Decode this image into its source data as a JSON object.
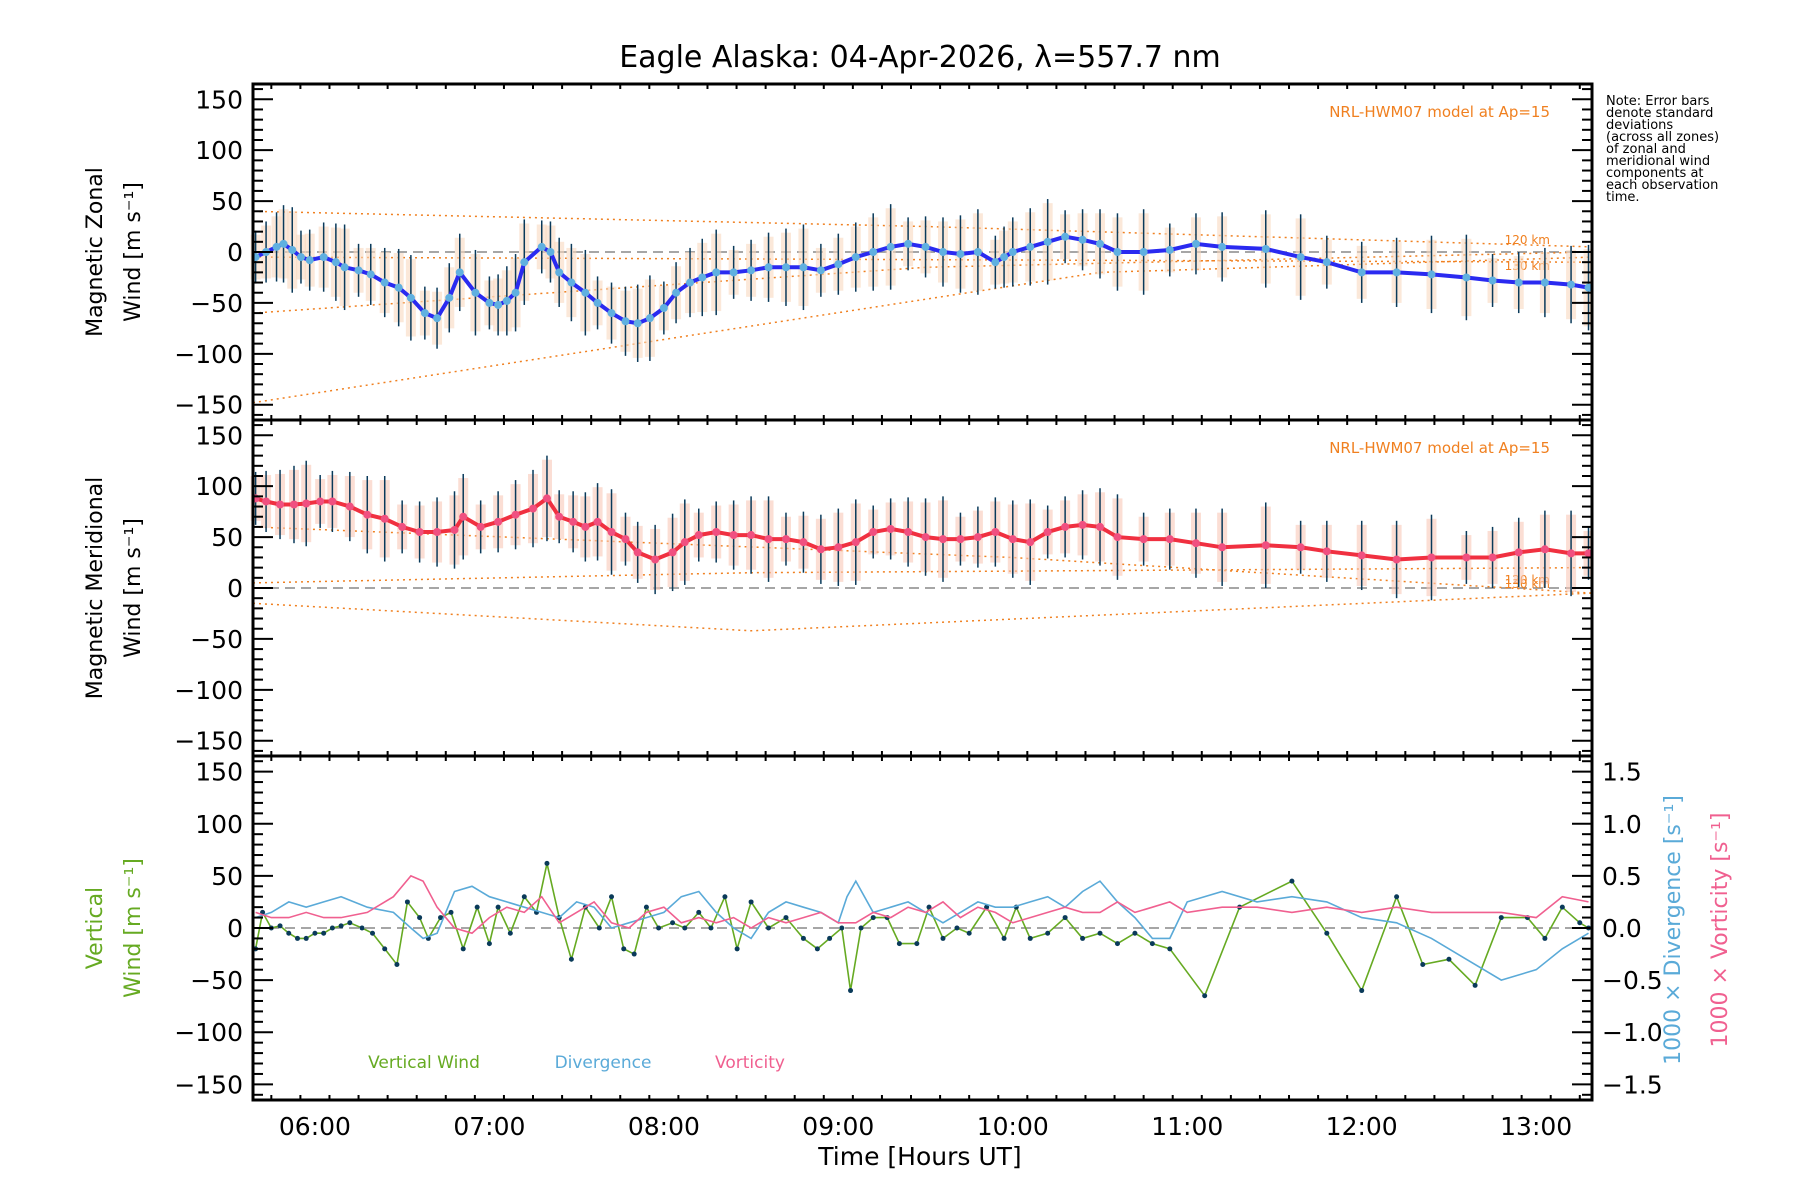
{
  "chart_data": [
    {
      "type": "line",
      "panel": "zonal",
      "title": "Eagle Alaska: 04-Apr-2026, λ=557.7 nm",
      "ylabel_line1": "Magnetic Zonal",
      "ylabel_line2": "Wind [m s⁻¹]",
      "ylim": [
        -165,
        165
      ],
      "yticks": [
        -150,
        -100,
        -50,
        0,
        50,
        100,
        150
      ],
      "model_label": "NRL-HWM07 model at Ap=15",
      "model_levels": [
        "120 km",
        "130 km"
      ],
      "series": [
        {
          "name": "Zonal Wind",
          "color": "#2a2af0",
          "x": [
            5.66,
            5.72,
            5.78,
            5.82,
            5.87,
            5.92,
            5.97,
            6.05,
            6.12,
            6.17,
            6.25,
            6.32,
            6.4,
            6.48,
            6.55,
            6.63,
            6.7,
            6.77,
            6.83,
            6.92,
            7.0,
            7.05,
            7.1,
            7.15,
            7.2,
            7.3,
            7.35,
            7.4,
            7.47,
            7.55,
            7.62,
            7.7,
            7.78,
            7.85,
            7.92,
            8.0,
            8.07,
            8.15,
            8.22,
            8.3,
            8.4,
            8.5,
            8.6,
            8.7,
            8.8,
            8.9,
            9.0,
            9.1,
            9.2,
            9.3,
            9.4,
            9.5,
            9.6,
            9.7,
            9.8,
            9.9,
            9.95,
            10.0,
            10.1,
            10.2,
            10.3,
            10.4,
            10.5,
            10.6,
            10.75,
            10.9,
            11.05,
            11.2,
            11.45,
            11.65,
            11.8,
            12.0,
            12.2,
            12.4,
            12.6,
            12.75,
            12.9,
            13.05,
            13.2,
            13.3
          ],
          "y": [
            -5,
            0,
            5,
            8,
            2,
            -5,
            -8,
            -5,
            -10,
            -15,
            -18,
            -22,
            -30,
            -35,
            -45,
            -60,
            -65,
            -45,
            -20,
            -40,
            -50,
            -52,
            -48,
            -40,
            -10,
            5,
            0,
            -20,
            -30,
            -40,
            -50,
            -60,
            -68,
            -70,
            -65,
            -55,
            -40,
            -30,
            -25,
            -20,
            -20,
            -18,
            -15,
            -15,
            -15,
            -18,
            -12,
            -5,
            0,
            5,
            8,
            5,
            0,
            -2,
            0,
            -10,
            -5,
            0,
            5,
            10,
            15,
            12,
            8,
            0,
            0,
            2,
            8,
            5,
            3,
            -5,
            -10,
            -20,
            -20,
            -22,
            -25,
            -28,
            -30,
            -30,
            -32,
            -35
          ]
        }
      ]
    },
    {
      "type": "line",
      "panel": "meridional",
      "ylabel_line1": "Magnetic Meridional",
      "ylabel_line2": "Wind [m s⁻¹]",
      "ylim": [
        -165,
        165
      ],
      "yticks": [
        -150,
        -100,
        -50,
        0,
        50,
        100,
        150
      ],
      "model_label": "NRL-HWM07 model at Ap=15",
      "model_levels": [
        "120 km",
        "130 km"
      ],
      "series": [
        {
          "name": "Meridional Wind",
          "color": "#f03040",
          "x": [
            5.66,
            5.72,
            5.8,
            5.88,
            5.95,
            6.03,
            6.1,
            6.2,
            6.3,
            6.4,
            6.5,
            6.6,
            6.7,
            6.8,
            6.85,
            6.95,
            7.05,
            7.15,
            7.25,
            7.33,
            7.4,
            7.48,
            7.55,
            7.62,
            7.7,
            7.78,
            7.85,
            7.95,
            8.05,
            8.12,
            8.2,
            8.3,
            8.4,
            8.5,
            8.6,
            8.7,
            8.8,
            8.9,
            9.0,
            9.1,
            9.2,
            9.3,
            9.4,
            9.5,
            9.6,
            9.7,
            9.8,
            9.9,
            10.0,
            10.1,
            10.2,
            10.3,
            10.4,
            10.5,
            10.6,
            10.75,
            10.9,
            11.05,
            11.2,
            11.45,
            11.65,
            11.8,
            12.0,
            12.2,
            12.4,
            12.6,
            12.75,
            12.9,
            13.05,
            13.2,
            13.3
          ],
          "y": [
            88,
            85,
            82,
            82,
            83,
            85,
            85,
            80,
            72,
            68,
            60,
            55,
            55,
            57,
            70,
            60,
            65,
            72,
            78,
            88,
            70,
            65,
            60,
            65,
            55,
            48,
            35,
            28,
            35,
            45,
            52,
            55,
            52,
            52,
            48,
            48,
            45,
            38,
            40,
            45,
            55,
            58,
            55,
            50,
            48,
            48,
            50,
            55,
            48,
            45,
            55,
            60,
            62,
            60,
            50,
            48,
            48,
            44,
            40,
            42,
            40,
            36,
            32,
            28,
            30,
            30,
            30,
            35,
            38,
            34,
            34
          ]
        }
      ]
    },
    {
      "type": "line",
      "panel": "vertical",
      "ylabel_line1": "Vertical",
      "ylabel_line2": "Wind [m s⁻¹]",
      "y2label_div": "1000 × Divergence [s⁻¹]",
      "y2label_vort": "1000 × Vorticity [s⁻¹]",
      "ylim": [
        -165,
        165
      ],
      "yticks": [
        -150,
        -100,
        -50,
        0,
        50,
        100,
        150
      ],
      "y2lim": [
        -1.65,
        1.65
      ],
      "y2ticks": [
        -1.5,
        -1.0,
        -0.5,
        0.0,
        0.5,
        1.0,
        1.5
      ],
      "xlabel": "Time [Hours UT]",
      "xticks": [
        "06:00",
        "07:00",
        "08:00",
        "09:00",
        "10:00",
        "11:00",
        "12:00",
        "13:00"
      ],
      "xlim_hours": [
        5.645,
        13.32
      ],
      "legend": [
        "Vertical Wind",
        "Divergence",
        "Vorticity"
      ],
      "series": [
        {
          "name": "Vertical Wind",
          "color": "#66aa22",
          "axis": "left",
          "x": [
            5.66,
            5.7,
            5.75,
            5.8,
            5.85,
            5.9,
            5.95,
            6.0,
            6.05,
            6.1,
            6.15,
            6.2,
            6.27,
            6.33,
            6.4,
            6.47,
            6.53,
            6.6,
            6.65,
            6.72,
            6.78,
            6.85,
            6.93,
            7.0,
            7.05,
            7.12,
            7.2,
            7.27,
            7.33,
            7.4,
            7.47,
            7.55,
            7.63,
            7.7,
            7.77,
            7.83,
            7.9,
            7.97,
            8.05,
            8.12,
            8.2,
            8.27,
            8.35,
            8.42,
            8.5,
            8.6,
            8.7,
            8.8,
            8.88,
            8.95,
            9.02,
            9.07,
            9.13,
            9.2,
            9.28,
            9.35,
            9.45,
            9.52,
            9.6,
            9.68,
            9.75,
            9.85,
            9.95,
            10.02,
            10.1,
            10.2,
            10.3,
            10.4,
            10.5,
            10.6,
            10.7,
            10.8,
            10.9,
            11.1,
            11.3,
            11.6,
            11.8,
            12.0,
            12.2,
            12.35,
            12.5,
            12.65,
            12.8,
            12.95,
            13.05,
            13.15,
            13.25,
            13.3
          ],
          "y": [
            -20,
            15,
            0,
            2,
            -5,
            -10,
            -10,
            -5,
            -5,
            0,
            2,
            5,
            0,
            -5,
            -20,
            -35,
            25,
            10,
            -10,
            10,
            15,
            -20,
            20,
            -15,
            20,
            -5,
            30,
            15,
            62,
            10,
            -30,
            20,
            0,
            30,
            -20,
            -25,
            20,
            0,
            5,
            0,
            15,
            0,
            30,
            -20,
            25,
            0,
            10,
            -10,
            -20,
            -10,
            0,
            -60,
            0,
            10,
            10,
            -15,
            -15,
            20,
            -10,
            0,
            -5,
            20,
            -10,
            20,
            -10,
            -5,
            10,
            -10,
            -5,
            -15,
            -5,
            -15,
            -20,
            -65,
            20,
            45,
            -5,
            -60,
            30,
            -35,
            -30,
            -55,
            10,
            10,
            -10,
            20,
            5,
            0
          ]
        },
        {
          "name": "Divergence",
          "color": "#5aaad8",
          "axis": "right",
          "x": [
            5.66,
            5.75,
            5.85,
            5.95,
            6.05,
            6.15,
            6.3,
            6.45,
            6.55,
            6.62,
            6.7,
            6.8,
            6.9,
            7.0,
            7.1,
            7.2,
            7.3,
            7.4,
            7.5,
            7.6,
            7.7,
            7.8,
            7.9,
            8.0,
            8.1,
            8.2,
            8.3,
            8.4,
            8.5,
            8.6,
            8.7,
            8.8,
            8.9,
            9.0,
            9.05,
            9.1,
            9.2,
            9.3,
            9.4,
            9.5,
            9.6,
            9.7,
            9.8,
            9.9,
            10.0,
            10.1,
            10.2,
            10.3,
            10.4,
            10.5,
            10.6,
            10.7,
            10.8,
            10.9,
            11.0,
            11.2,
            11.4,
            11.6,
            11.8,
            12.0,
            12.2,
            12.4,
            12.6,
            12.8,
            13.0,
            13.15,
            13.3
          ],
          "y": [
            0.1,
            0.15,
            0.25,
            0.2,
            0.25,
            0.3,
            0.2,
            0.15,
            0.0,
            -0.1,
            -0.05,
            0.35,
            0.4,
            0.3,
            0.25,
            0.2,
            0.15,
            0.1,
            0.25,
            0.2,
            0.0,
            0.05,
            0.1,
            0.15,
            0.3,
            0.35,
            0.15,
            0.0,
            -0.1,
            0.15,
            0.25,
            0.2,
            0.15,
            0.05,
            0.3,
            0.45,
            0.15,
            0.2,
            0.25,
            0.15,
            0.05,
            0.15,
            0.25,
            0.2,
            0.2,
            0.25,
            0.3,
            0.2,
            0.35,
            0.45,
            0.25,
            0.1,
            -0.1,
            -0.1,
            0.25,
            0.35,
            0.25,
            0.3,
            0.25,
            0.1,
            0.05,
            -0.1,
            -0.3,
            -0.5,
            -0.4,
            -0.2,
            -0.05
          ]
        },
        {
          "name": "Vorticity",
          "color": "#f06090",
          "axis": "right",
          "x": [
            5.66,
            5.75,
            5.85,
            5.95,
            6.05,
            6.15,
            6.3,
            6.45,
            6.55,
            6.62,
            6.7,
            6.8,
            6.9,
            7.0,
            7.1,
            7.2,
            7.3,
            7.4,
            7.5,
            7.6,
            7.7,
            7.8,
            7.9,
            8.0,
            8.1,
            8.2,
            8.3,
            8.4,
            8.5,
            8.6,
            8.7,
            8.8,
            8.9,
            9.0,
            9.1,
            9.2,
            9.3,
            9.4,
            9.5,
            9.6,
            9.7,
            9.8,
            9.9,
            10.0,
            10.1,
            10.2,
            10.3,
            10.4,
            10.5,
            10.6,
            10.7,
            10.8,
            10.9,
            11.0,
            11.2,
            11.4,
            11.6,
            11.8,
            12.0,
            12.2,
            12.4,
            12.6,
            12.8,
            13.0,
            13.15,
            13.3
          ],
          "y": [
            0.15,
            0.1,
            0.1,
            0.15,
            0.1,
            0.1,
            0.15,
            0.3,
            0.5,
            0.45,
            0.2,
            0.0,
            -0.05,
            0.1,
            0.2,
            0.15,
            0.3,
            0.05,
            0.15,
            0.25,
            0.05,
            0.0,
            0.15,
            0.2,
            0.05,
            0.1,
            0.05,
            0.1,
            0.0,
            0.1,
            0.05,
            0.1,
            0.15,
            0.05,
            0.05,
            0.15,
            0.1,
            0.2,
            0.15,
            0.25,
            0.1,
            0.2,
            0.15,
            0.05,
            0.1,
            0.15,
            0.2,
            0.15,
            0.15,
            0.25,
            0.15,
            0.2,
            0.25,
            0.15,
            0.2,
            0.2,
            0.15,
            0.2,
            0.15,
            0.2,
            0.15,
            0.15,
            0.15,
            0.1,
            0.3,
            0.25
          ]
        }
      ]
    }
  ],
  "note": "Note: Error bars\ndenote standard\ndeviations\n(across all zones)\nof zonal and\nmeridional wind\ncomponents at\neach observation\ntime."
}
